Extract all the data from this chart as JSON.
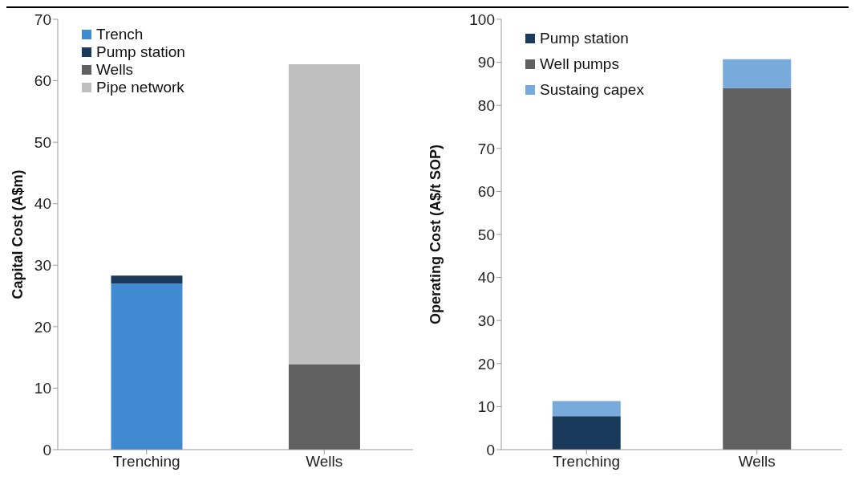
{
  "chart_data": [
    {
      "type": "bar",
      "stacked": true,
      "categories": [
        "Trenching",
        "Wells"
      ],
      "ylabel": "Capital Cost (A$m)",
      "ylim": [
        0,
        70
      ],
      "yticks": [
        0,
        10,
        20,
        30,
        40,
        50,
        60,
        70
      ],
      "legend": "top left",
      "grid": false,
      "series": [
        {
          "name": "Trench",
          "color": "#3f8ad0",
          "values": [
            27.0,
            null
          ]
        },
        {
          "name": "Pump station",
          "color": "#1a3a5c",
          "values": [
            1.3,
            null
          ]
        },
        {
          "name": "Wells",
          "color": "#606060",
          "values": [
            null,
            13.9
          ]
        },
        {
          "name": "Pipe network",
          "color": "#bfbfbf",
          "values": [
            null,
            48.8
          ]
        }
      ]
    },
    {
      "type": "bar",
      "stacked": true,
      "categories": [
        "Trenching",
        "Wells"
      ],
      "ylabel": "Operating Cost (A$/t SOP)",
      "ylim": [
        0,
        100
      ],
      "yticks": [
        0,
        10,
        20,
        30,
        40,
        50,
        60,
        70,
        80,
        90,
        100
      ],
      "legend": "top left",
      "grid": false,
      "series": [
        {
          "name": "Pump station",
          "color": "#1a3a5c",
          "values": [
            7.8,
            null
          ]
        },
        {
          "name": "Well pumps",
          "color": "#606060",
          "values": [
            null,
            84.0
          ]
        },
        {
          "name": "Sustaing capex",
          "color": "#79aadc",
          "values": [
            3.5,
            6.7
          ]
        }
      ]
    }
  ]
}
